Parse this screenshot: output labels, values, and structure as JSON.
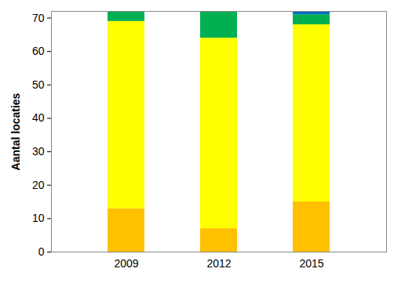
{
  "chart_data": {
    "type": "bar",
    "stacked": true,
    "y_label": "Aantal locaties",
    "categories": [
      "2009",
      "2012",
      "2015"
    ],
    "series": [
      {
        "color": "#FFC000",
        "values": [
          13,
          7,
          15
        ]
      },
      {
        "color": "#FFFF00",
        "values": [
          56,
          57,
          53
        ]
      },
      {
        "color": "#00B050",
        "values": [
          3,
          8,
          3
        ]
      },
      {
        "color": "#0070C0",
        "values": [
          0,
          0,
          1
        ]
      }
    ],
    "ylim": [
      0,
      72
    ],
    "yticks": [
      0,
      10,
      20,
      30,
      40,
      50,
      60,
      70
    ],
    "grid": false
  }
}
